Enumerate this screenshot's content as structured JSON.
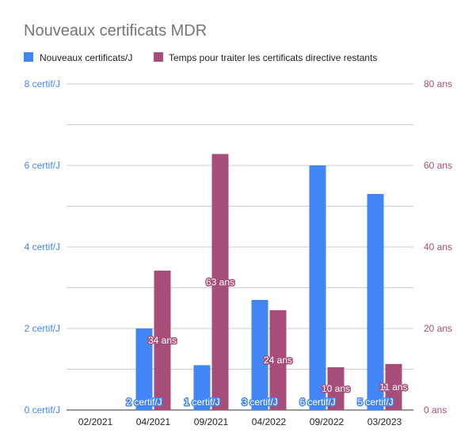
{
  "chart_data": {
    "type": "bar",
    "title": "Nouveaux certificats MDR",
    "categories": [
      "02/2021",
      "04/2021",
      "09/2021",
      "04/2022",
      "09/2022",
      "03/2023"
    ],
    "series": [
      {
        "name": "Nouveaux certificats/J",
        "axis": "left",
        "color": "#4285f4",
        "values": [
          0,
          2,
          1.1,
          2.7,
          6,
          5.3
        ],
        "labels": [
          "",
          "2 certif/J",
          "1 certif/J",
          "3 certif/J",
          "6 certif/J",
          "5 certif/J"
        ]
      },
      {
        "name": "Temps pour traiter les certificats directive restants",
        "axis": "right",
        "color": "#a64d79",
        "values": [
          0,
          34.2,
          62.8,
          24.5,
          10.5,
          11.3
        ],
        "labels": [
          "",
          "34 ans",
          "63 ans",
          "24 ans",
          "10 ans",
          "11 ans"
        ]
      }
    ],
    "y_left": {
      "min": 0,
      "max": 8,
      "ticks": [
        {
          "value": 0,
          "label": "0 certif/J"
        },
        {
          "value": 2,
          "label": "2 certif/J"
        },
        {
          "value": 4,
          "label": "4 certif/J"
        },
        {
          "value": 6,
          "label": "6 certif/J"
        },
        {
          "value": 8,
          "label": "8 certif/J"
        }
      ],
      "color": "#4285f4"
    },
    "y_right": {
      "min": 0,
      "max": 80,
      "ticks": [
        {
          "value": 0,
          "label": "0 ans"
        },
        {
          "value": 20,
          "label": "20 ans"
        },
        {
          "value": 40,
          "label": "40 ans"
        },
        {
          "value": 60,
          "label": "60 ans"
        },
        {
          "value": 80,
          "label": "80 ans"
        }
      ],
      "color": "#a64d79"
    },
    "gridlines": [
      0,
      1,
      2,
      3,
      4,
      5,
      6,
      7,
      8
    ],
    "legend_position": "top-left",
    "grid": true
  }
}
